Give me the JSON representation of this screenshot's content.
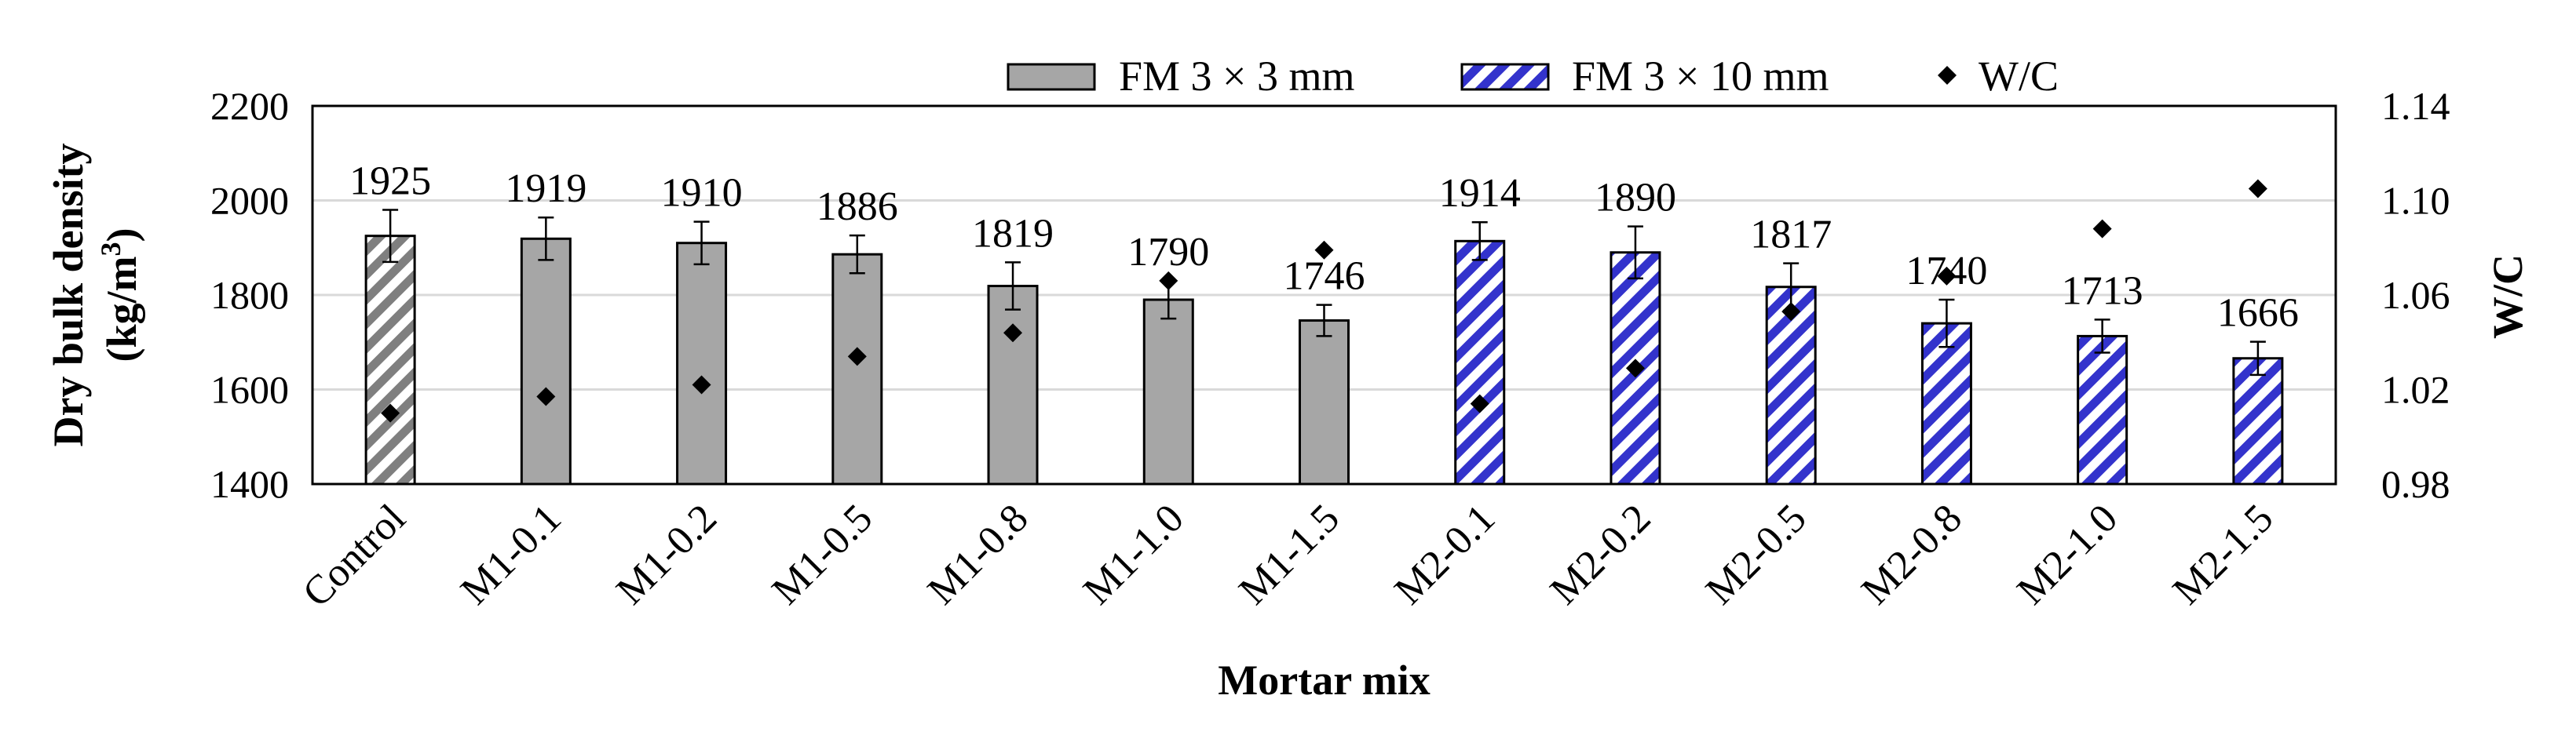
{
  "chart_data": {
    "type": "bar",
    "xlabel": "Mortar mix",
    "ylabel": "Dry bulk density (kg/m³)",
    "ylabel_line1": "Dry bulk density",
    "ylabel_line2_base": "(kg/m",
    "ylabel_line2_sup": "3",
    "ylabel_line2_end": ")",
    "y2label": "W/C",
    "ylim": [
      1400,
      2200
    ],
    "yticks": [
      "1400",
      "1600",
      "1800",
      "2000",
      "2200"
    ],
    "y2lim": [
      0.98,
      1.14
    ],
    "y2ticks": [
      "0.98",
      "1.02",
      "1.06",
      "1.10",
      "1.14"
    ],
    "grid": true,
    "legend_position": "top-center",
    "categories": [
      "Control",
      "M1-0.1",
      "M1-0.2",
      "M1-0.5",
      "M1-0.8",
      "M1-1.0",
      "M1-1.5",
      "M2-0.1",
      "M2-0.2",
      "M2-0.5",
      "M2-0.8",
      "M2-1.0",
      "M2-1.5"
    ],
    "bars": [
      {
        "label": "1925",
        "value": 1925,
        "error": 55,
        "style": "control"
      },
      {
        "label": "1919",
        "value": 1919,
        "error": 45,
        "style": "fm3x3"
      },
      {
        "label": "1910",
        "value": 1910,
        "error": 45,
        "style": "fm3x3"
      },
      {
        "label": "1886",
        "value": 1886,
        "error": 40,
        "style": "fm3x3"
      },
      {
        "label": "1819",
        "value": 1819,
        "error": 50,
        "style": "fm3x3"
      },
      {
        "label": "1790",
        "value": 1790,
        "error": 40,
        "style": "fm3x3"
      },
      {
        "label": "1746",
        "value": 1746,
        "error": 33,
        "style": "fm3x3"
      },
      {
        "label": "1914",
        "value": 1914,
        "error": 40,
        "style": "fm3x10"
      },
      {
        "label": "1890",
        "value": 1890,
        "error": 55,
        "style": "fm3x10"
      },
      {
        "label": "1817",
        "value": 1817,
        "error": 50,
        "style": "fm3x10"
      },
      {
        "label": "1740",
        "value": 1740,
        "error": 50,
        "style": "fm3x10"
      },
      {
        "label": "1713",
        "value": 1713,
        "error": 35,
        "style": "fm3x10"
      },
      {
        "label": "1666",
        "value": 1666,
        "error": 35,
        "style": "fm3x10"
      }
    ],
    "wc_values": [
      1.01,
      1.017,
      1.022,
      1.034,
      1.044,
      1.066,
      1.079,
      1.014,
      1.029,
      1.053,
      1.068,
      1.088,
      1.105
    ],
    "legend": [
      {
        "label": "FM 3 × 3 mm",
        "style": "fm3x3"
      },
      {
        "label": "FM 3 × 10 mm",
        "style": "fm3x10"
      },
      {
        "label": "W/C",
        "style": "marker"
      }
    ],
    "colors": {
      "fm3x3": "#a6a6a6",
      "fm3x10": "#3333cc",
      "control": "#7f7f7f",
      "marker": "#000000",
      "grid": "#d9d9d9"
    }
  }
}
